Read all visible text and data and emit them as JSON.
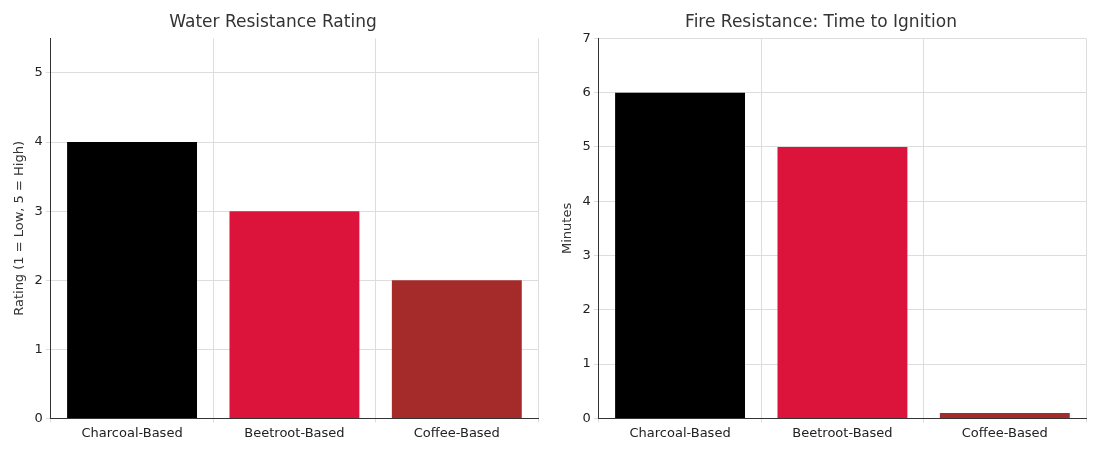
{
  "chart_data": [
    {
      "type": "bar",
      "title": "Water Resistance Rating",
      "ylabel": "Rating (1 = Low, 5 = High)",
      "categories": [
        "Charcoal-Based",
        "Beetroot-Based",
        "Coffee-Based"
      ],
      "values": [
        4,
        3,
        2
      ],
      "colors": [
        "#000000",
        "#dc143c",
        "#a52a2a"
      ],
      "ylim": [
        0,
        5.5
      ],
      "yticks": [
        0,
        1,
        2,
        3,
        4,
        5
      ],
      "grid": true
    },
    {
      "type": "bar",
      "title": "Fire Resistance: Time to Ignition",
      "ylabel": "Minutes",
      "categories": [
        "Charcoal-Based",
        "Beetroot-Based",
        "Coffee-Based"
      ],
      "values": [
        6,
        5,
        0.1
      ],
      "colors": [
        "#000000",
        "#dc143c",
        "#a52a2a"
      ],
      "ylim": [
        0,
        7
      ],
      "yticks": [
        0,
        1,
        2,
        3,
        4,
        5,
        6,
        7
      ],
      "grid": true
    }
  ]
}
